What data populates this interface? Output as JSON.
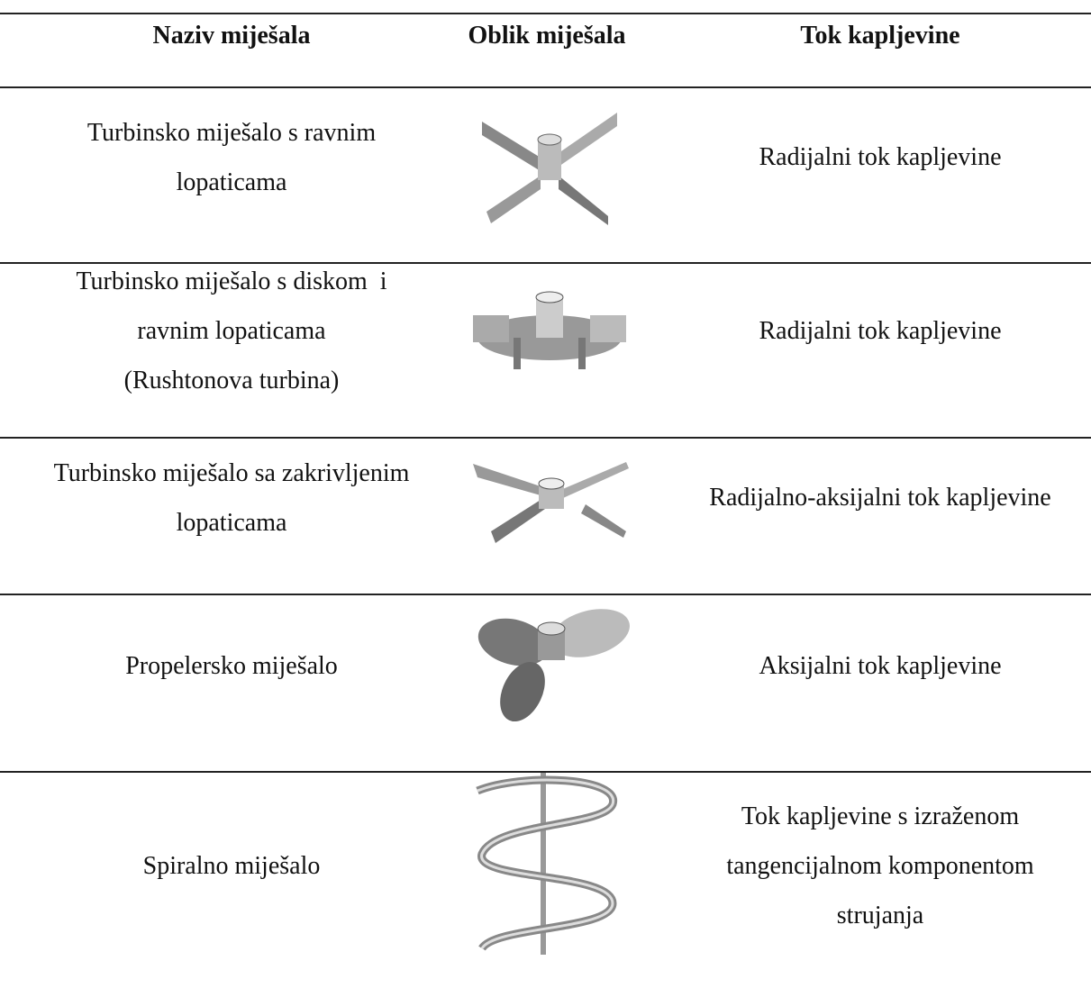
{
  "table": {
    "header": [
      "Naziv miješala",
      "Oblik miješala",
      "Tok kapljevine"
    ],
    "rows": [
      {
        "name": [
          "Turbinsko miješalo s ravnim",
          "lopaticama"
        ],
        "flow": [
          "Radijalni tok kapljevine"
        ]
      },
      {
        "name": [
          "Turbinsko miješalo s diskom  i",
          "ravnim lopaticama",
          "(Rushtonova turbina)"
        ],
        "flow": [
          "Radijalni tok kapljevine"
        ]
      },
      {
        "name": [
          "Turbinsko miješalo sa zakrivljenim",
          "lopaticama"
        ],
        "flow": [
          "Radijalno-aksijalni tok kapljevine"
        ]
      },
      {
        "name": [
          "Propelersko miješalo"
        ],
        "flow": [
          "Aksijalni tok kapljevine"
        ]
      },
      {
        "name": [
          "Spiralno miješalo"
        ],
        "flow": [
          "Tok kapljevine s izraženom",
          "tangencijalnom komponentom",
          "strujanja"
        ]
      }
    ]
  }
}
